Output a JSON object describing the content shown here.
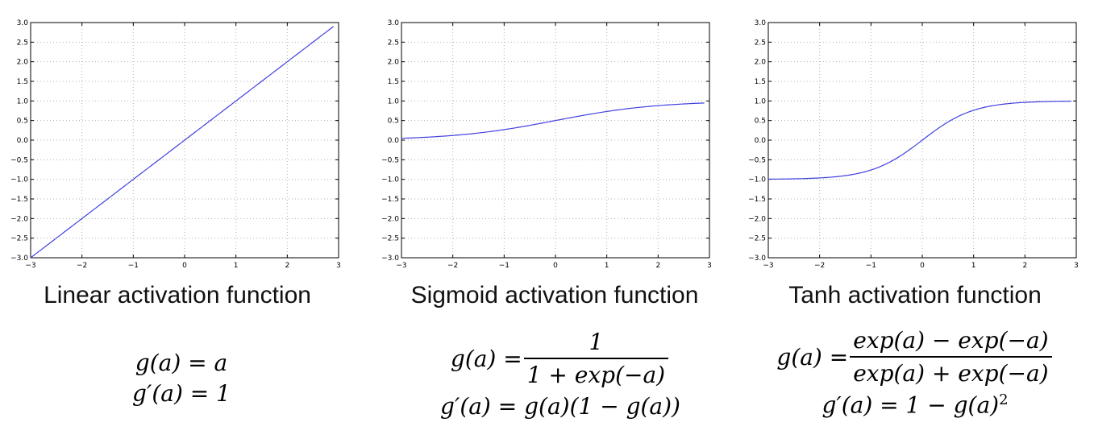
{
  "chart_data": [
    {
      "type": "line",
      "title": "",
      "xlabel": "",
      "ylabel": "",
      "xlim": [
        -3,
        3
      ],
      "ylim": [
        -3.0,
        3.0
      ],
      "grid": true,
      "x_ticks": [
        "−3",
        "−2",
        "−1",
        "0",
        "1",
        "2",
        "3"
      ],
      "y_ticks": [
        "3.0",
        "2.5",
        "2.0",
        "1.5",
        "1.0",
        "0.5",
        "0.0",
        "−0.5",
        "−1.0",
        "−1.5",
        "−2.0",
        "−2.5",
        "−3.0"
      ],
      "series": [
        {
          "function": "linear",
          "color": "#4040e0",
          "x": [
            -3.0,
            -2.0,
            -1.0,
            0.0,
            1.0,
            2.0,
            2.9
          ],
          "y": [
            -3.0,
            -2.0,
            -1.0,
            0.0,
            1.0,
            2.0,
            2.9
          ]
        }
      ]
    },
    {
      "type": "line",
      "title": "",
      "xlabel": "",
      "ylabel": "",
      "xlim": [
        -3,
        3
      ],
      "ylim": [
        -3.0,
        3.0
      ],
      "grid": true,
      "x_ticks": [
        "−3",
        "−2",
        "−1",
        "0",
        "1",
        "2",
        "3"
      ],
      "y_ticks": [
        "3.0",
        "2.5",
        "2.0",
        "1.5",
        "1.0",
        "0.5",
        "0.0",
        "−0.5",
        "−1.0",
        "−1.5",
        "−2.0",
        "−2.5",
        "−3.0"
      ],
      "series": [
        {
          "function": "sigmoid",
          "color": "#4040e0",
          "x": [
            -3.0,
            -2.0,
            -1.0,
            0.0,
            1.0,
            2.0,
            2.9
          ],
          "y": [
            0.05,
            0.12,
            0.27,
            0.5,
            0.73,
            0.88,
            0.95
          ]
        }
      ]
    },
    {
      "type": "line",
      "title": "",
      "xlabel": "",
      "ylabel": "",
      "xlim": [
        -3,
        3
      ],
      "ylim": [
        -3.0,
        3.0
      ],
      "grid": true,
      "x_ticks": [
        "−3",
        "−2",
        "−1",
        "0",
        "1",
        "2",
        "3"
      ],
      "y_ticks": [
        "3.0",
        "2.5",
        "2.0",
        "1.5",
        "1.0",
        "0.5",
        "0.0",
        "−0.5",
        "−1.0",
        "−1.5",
        "−2.0",
        "−2.5",
        "−3.0"
      ],
      "series": [
        {
          "function": "tanh",
          "color": "#4040e0",
          "x": [
            -3.0,
            -2.0,
            -1.0,
            0.0,
            1.0,
            2.0,
            2.9
          ],
          "y": [
            -1.0,
            -0.96,
            -0.76,
            0.0,
            0.76,
            0.96,
            0.99
          ]
        }
      ]
    }
  ],
  "captions": [
    "Linear activation function",
    "Sigmoid activation function",
    "Tanh activation function"
  ],
  "formulas": {
    "linear": {
      "g": "g(a) = a",
      "gp": "g′(a) = 1"
    },
    "sigmoid": {
      "lhs": "g(a) =",
      "num": "1",
      "den": "1 + exp(−a)",
      "gp": "g′(a) = g(a)(1 − g(a))"
    },
    "tanh": {
      "lhs": "g(a) =",
      "num": "exp(a) − exp(−a)",
      "den": "exp(a) + exp(−a)",
      "gp_base": "g′(a) = 1 − g(a)",
      "gp_exp": "2"
    }
  }
}
